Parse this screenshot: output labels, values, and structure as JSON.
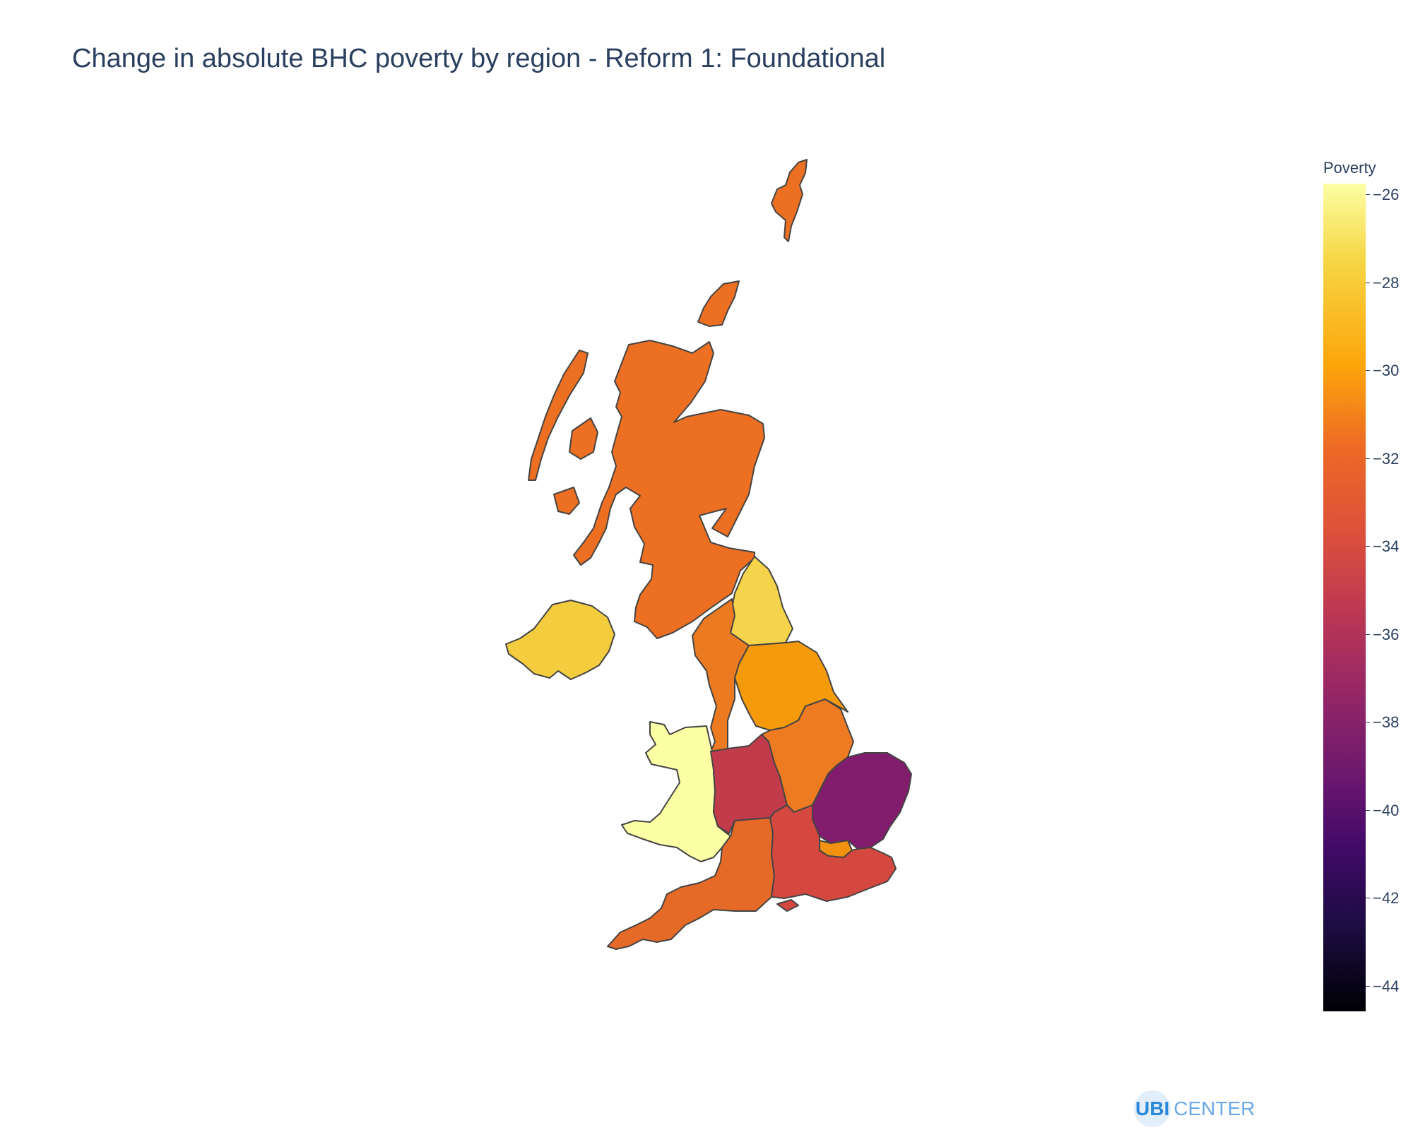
{
  "title": "Change in absolute BHC poverty by region - Reform 1: Foundational",
  "colorbar": {
    "title": "Poverty",
    "ticks": [
      "−26",
      "−28",
      "−30",
      "−32",
      "−34",
      "−36",
      "−38",
      "−40",
      "−42",
      "−44"
    ],
    "range": [
      -44.7,
      -25.8
    ],
    "colorscale": "Inferno"
  },
  "regions": [
    {
      "name": "Scotland",
      "value": -32,
      "color": "#ed6f22"
    },
    {
      "name": "Northern Ireland",
      "value": -28.5,
      "color": "#f4cd3f"
    },
    {
      "name": "North East",
      "value": -27.5,
      "color": "#f5d44c"
    },
    {
      "name": "North West",
      "value": -31.7,
      "color": "#ec7a20"
    },
    {
      "name": "Yorkshire and the Humber",
      "value": -30,
      "color": "#f59b0b"
    },
    {
      "name": "Wales",
      "value": -25.9,
      "color": "#fcffa4"
    },
    {
      "name": "West Midlands",
      "value": -35,
      "color": "#c23b4b"
    },
    {
      "name": "East Midlands",
      "value": -31.5,
      "color": "#ee7a22"
    },
    {
      "name": "East of England",
      "value": -38.5,
      "color": "#821c6c"
    },
    {
      "name": "London",
      "value": -30,
      "color": "#f2920f"
    },
    {
      "name": "South West",
      "value": -32.3,
      "color": "#e56a27"
    },
    {
      "name": "South East",
      "value": -33.7,
      "color": "#d5483f"
    }
  ],
  "logo": {
    "part1": "UBI",
    "part2": "CENTER"
  }
}
